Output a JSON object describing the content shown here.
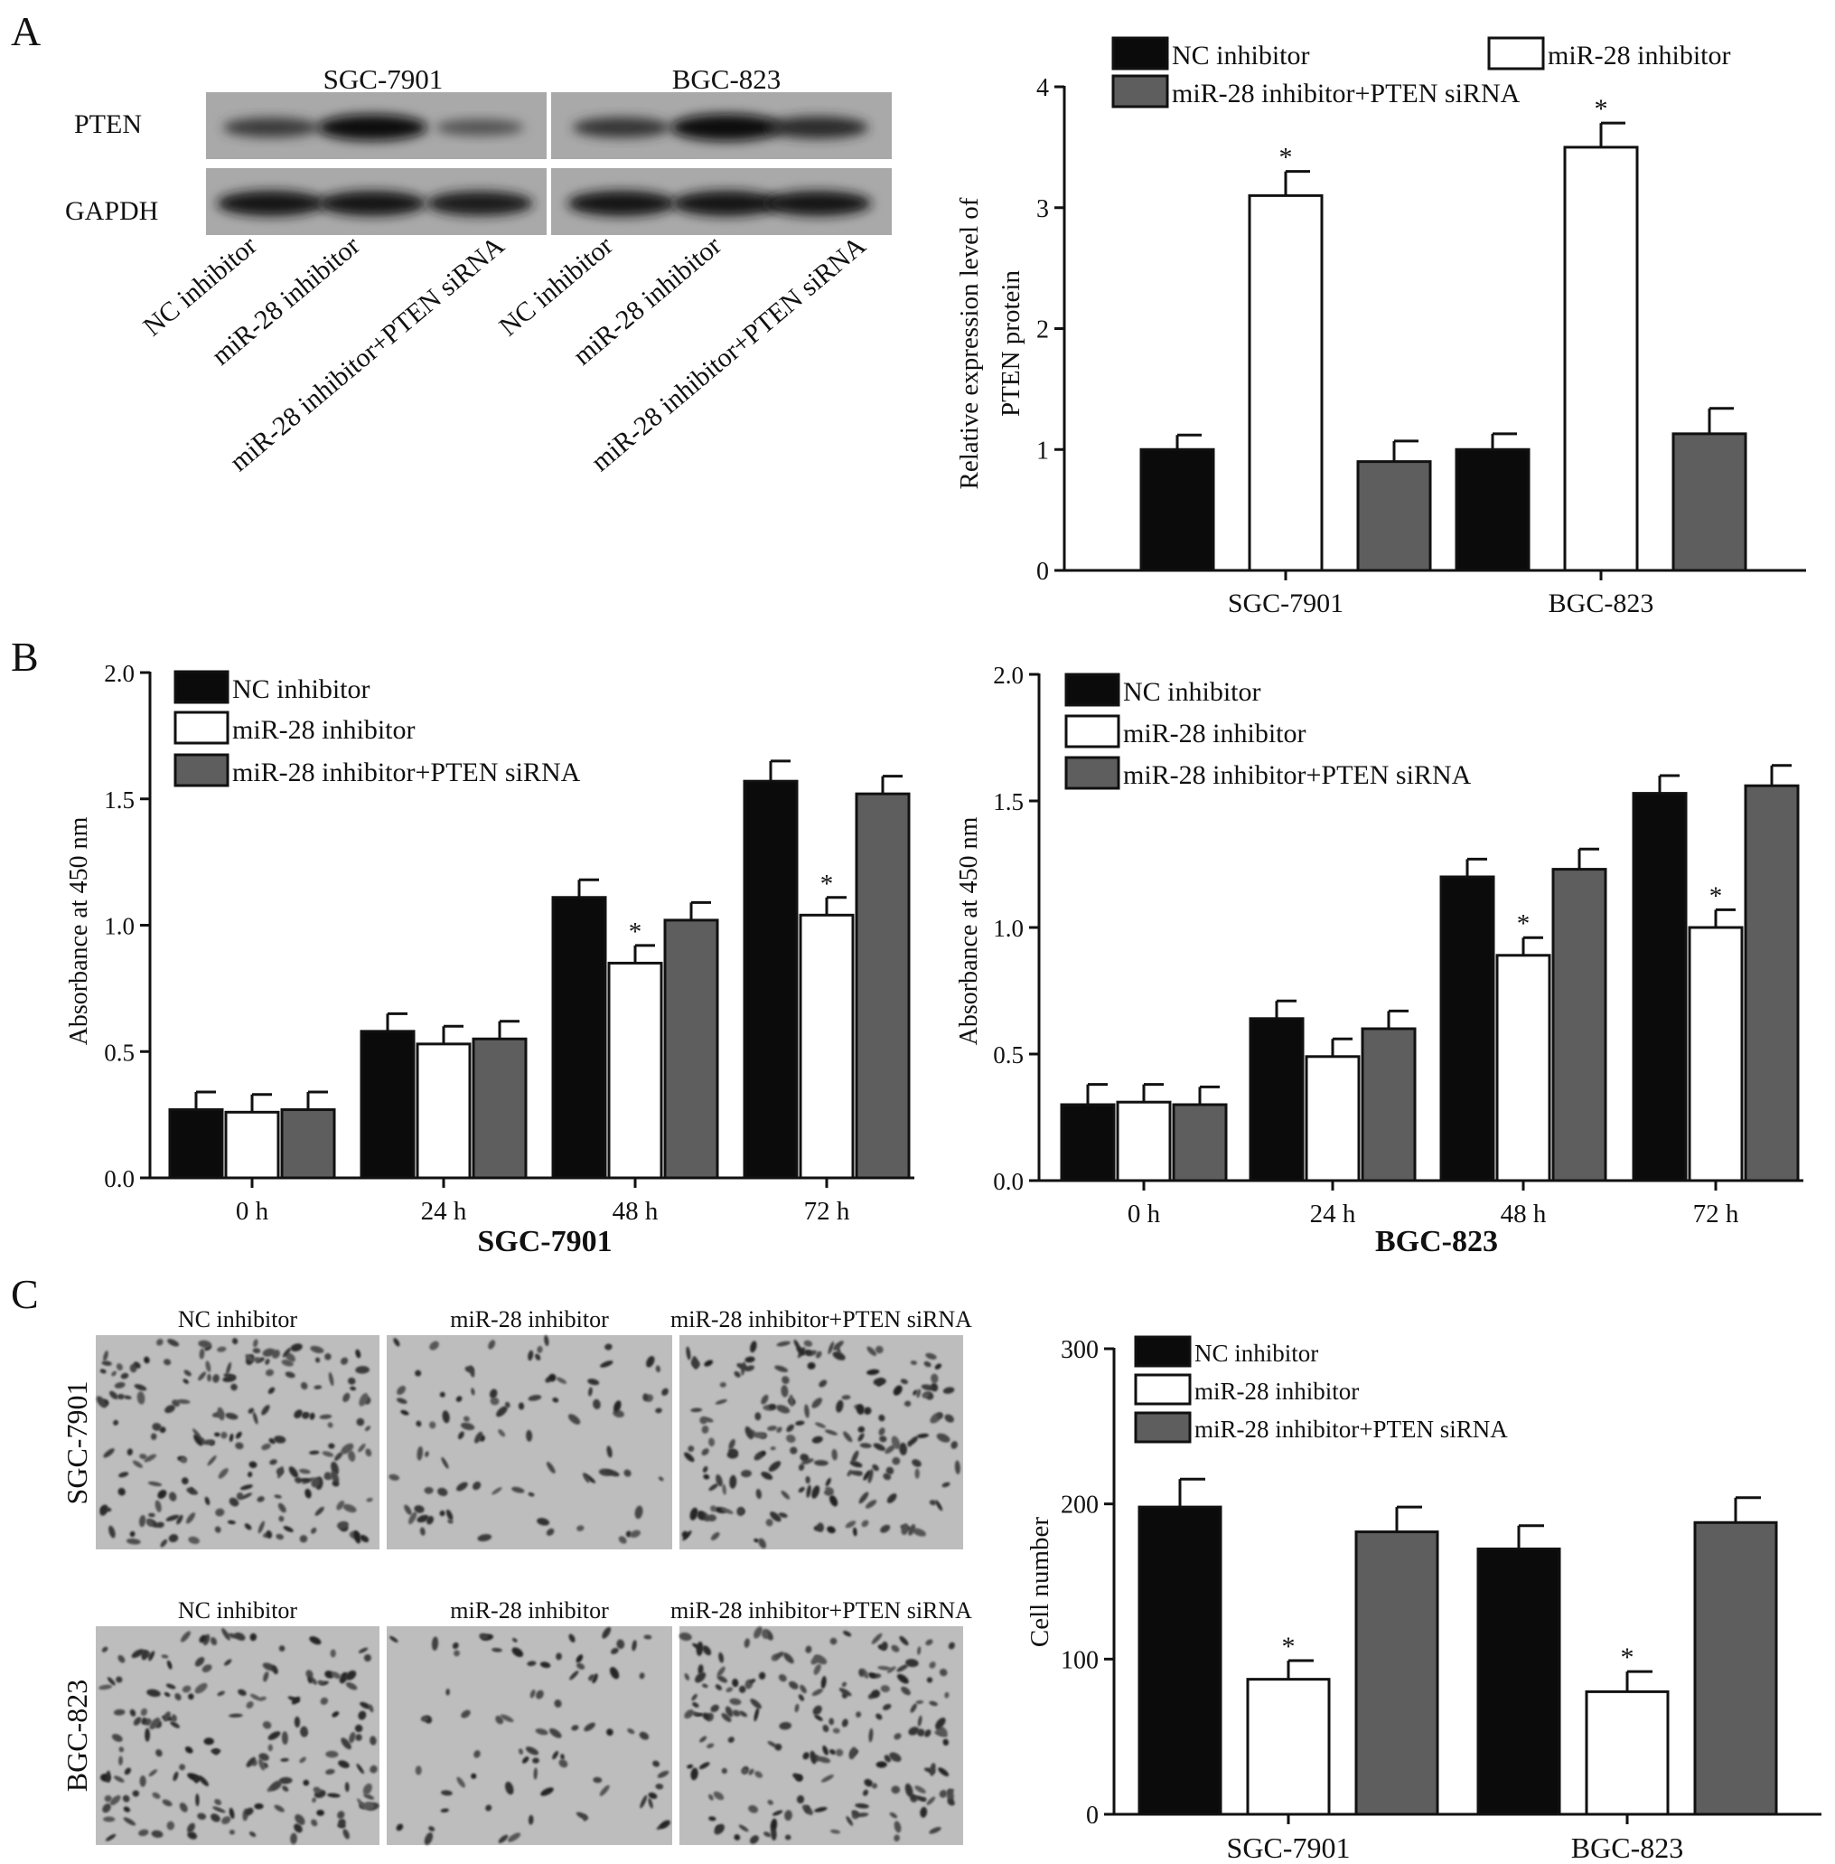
{
  "panel_labels": [
    "A",
    "B",
    "C"
  ],
  "colors": {
    "nc": "#0b0b0b",
    "mir": "#ffffff",
    "combo": "#5e5e5e",
    "axis": "#111111"
  },
  "legend_labels": [
    "NC inhibitor",
    "miR-28 inhibitor",
    "miR-28 inhibitor+PTEN siRNA"
  ],
  "blot": {
    "cell_lines": [
      "SGC-7901",
      "BGC-823"
    ],
    "rows": [
      "PTEN",
      "GAPDH"
    ],
    "lanes": [
      "NC inhibitor",
      "miR-28 inhibitor",
      "miR-28 inhibitor+PTEN siRNA",
      "NC inhibitor",
      "miR-28 inhibitor",
      "miR-28 inhibitor+PTEN siRNA"
    ],
    "pten_band_intensity": [
      0.55,
      0.95,
      0.35,
      0.6,
      1.0,
      0.7
    ],
    "gapdh_band_intensity": [
      0.9,
      0.88,
      0.85,
      0.9,
      0.9,
      0.88
    ]
  },
  "micrographs": {
    "column_labels": [
      "NC inhibitor",
      "miR-28 inhibitor",
      "miR-28 inhibitor+PTEN siRNA"
    ],
    "row_labels": [
      "SGC-7901",
      "BGC-823"
    ],
    "cell_density": [
      [
        1.0,
        0.45,
        0.95
      ],
      [
        0.9,
        0.4,
        0.95
      ]
    ]
  },
  "chart_data": [
    {
      "id": "A-right",
      "type": "bar",
      "categories": [
        "SGC-7901",
        "BGC-823"
      ],
      "series": [
        {
          "name": "NC inhibitor",
          "values": [
            1.0,
            1.0
          ],
          "errors": [
            0.12,
            0.13
          ]
        },
        {
          "name": "miR-28 inhibitor",
          "values": [
            3.1,
            3.5
          ],
          "errors": [
            0.2,
            0.2
          ],
          "stars": [
            "*",
            "*"
          ]
        },
        {
          "name": "miR-28 inhibitor+PTEN siRNA",
          "values": [
            0.9,
            1.13
          ],
          "errors": [
            0.17,
            0.21
          ]
        }
      ],
      "ylabel": [
        "Relative expression level of",
        "PTEN protein"
      ],
      "xlabel": "",
      "ylim": [
        0,
        4
      ],
      "yticks": [
        "0",
        "1",
        "2",
        "3",
        "4"
      ],
      "legend_position": "top"
    },
    {
      "id": "B-left",
      "type": "bar",
      "categories": [
        "0 h",
        "24 h",
        "48 h",
        "72 h"
      ],
      "series": [
        {
          "name": "NC inhibitor",
          "values": [
            0.27,
            0.58,
            1.11,
            1.57
          ],
          "errors": [
            0.07,
            0.07,
            0.07,
            0.08
          ]
        },
        {
          "name": "miR-28 inhibitor",
          "values": [
            0.26,
            0.53,
            0.85,
            1.04
          ],
          "errors": [
            0.07,
            0.07,
            0.07,
            0.07
          ],
          "stars": [
            "",
            "",
            "*",
            "*"
          ]
        },
        {
          "name": "miR-28 inhibitor+PTEN siRNA",
          "values": [
            0.27,
            0.55,
            1.02,
            1.52
          ],
          "errors": [
            0.07,
            0.07,
            0.07,
            0.07
          ]
        }
      ],
      "ylabel": "Absorbance at 450 nm",
      "xlabel": "SGC-7901",
      "ylim": [
        0,
        2
      ],
      "yticks": [
        "0.0",
        "0.5",
        "1.0",
        "1.5",
        "2.0"
      ],
      "legend_position": "top-left"
    },
    {
      "id": "B-right",
      "type": "bar",
      "categories": [
        "0 h",
        "24 h",
        "48 h",
        "72 h"
      ],
      "series": [
        {
          "name": "NC inhibitor",
          "values": [
            0.3,
            0.64,
            1.2,
            1.53
          ],
          "errors": [
            0.08,
            0.07,
            0.07,
            0.07
          ]
        },
        {
          "name": "miR-28 inhibitor",
          "values": [
            0.31,
            0.49,
            0.89,
            1.0
          ],
          "errors": [
            0.07,
            0.07,
            0.07,
            0.07
          ],
          "stars": [
            "",
            "",
            "*",
            "*"
          ]
        },
        {
          "name": "miR-28 inhibitor+PTEN siRNA",
          "values": [
            0.3,
            0.6,
            1.23,
            1.56
          ],
          "errors": [
            0.07,
            0.07,
            0.08,
            0.08
          ]
        }
      ],
      "ylabel": "Absorbance at 450 nm",
      "xlabel": "BGC-823",
      "ylim": [
        0,
        2
      ],
      "yticks": [
        "0.0",
        "0.5",
        "1.0",
        "1.5",
        "2.0"
      ],
      "legend_position": "top-left"
    },
    {
      "id": "C-right",
      "type": "bar",
      "categories": [
        "SGC-7901",
        "BGC-823"
      ],
      "series": [
        {
          "name": "NC inhibitor",
          "values": [
            198,
            171
          ],
          "errors": [
            18,
            15
          ]
        },
        {
          "name": "miR-28 inhibitor",
          "values": [
            87,
            79
          ],
          "errors": [
            12,
            13
          ],
          "stars": [
            "*",
            "*"
          ]
        },
        {
          "name": "miR-28 inhibitor+PTEN siRNA",
          "values": [
            182,
            188
          ],
          "errors": [
            16,
            16
          ]
        }
      ],
      "ylabel": "Cell number",
      "xlabel": "",
      "ylim": [
        0,
        300
      ],
      "yticks": [
        "0",
        "100",
        "200",
        "300"
      ],
      "legend_position": "top"
    }
  ]
}
